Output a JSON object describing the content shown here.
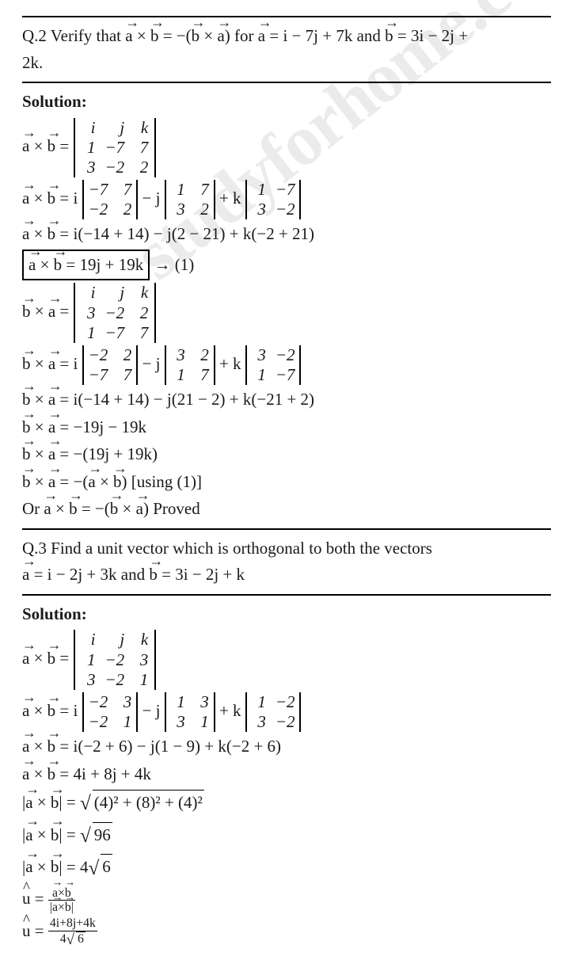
{
  "watermark": "studyforhome.com",
  "q2": {
    "prefix": "Q.2 Verify that ",
    "eq1_l": "a",
    "eq1_op": " × ",
    "eq1_r": "b",
    "eq1_rhs_pre": " = −(",
    "eq1_rhs_b": "b",
    "eq1_rhs_op": " × ",
    "eq1_rhs_a": "a",
    "eq1_rhs_post": ")",
    "for": " for ",
    "a_is": "a",
    "a_eq": " = i − 7j + 7k",
    "and": " and ",
    "b_is": "b",
    "b_eq": " = 3i − 2j + ",
    "line2": "2k."
  },
  "soln_label": "Solution:",
  "q2s": {
    "det3_ab": [
      "i",
      "j",
      "k",
      "1",
      "−7",
      "7",
      "3",
      "−2",
      "2"
    ],
    "ab_l1_pre": " =  i ",
    "d2a": [
      "−7",
      "7",
      "−2",
      "2"
    ],
    "ab_l1_mid": " − j ",
    "d2b": [
      "1",
      "7",
      "3",
      "2"
    ],
    "ab_l1_mid2": " + k ",
    "d2c": [
      "1",
      "−7",
      "3",
      "−2"
    ],
    "ab_expand": " = i(−14 + 14) − j(2 − 21) + k(−2 + 21)",
    "ab_boxed_l": "a",
    "ab_boxed_r": "b",
    "ab_boxed_rhs": " = 19j + 19k",
    "arrow_to_1": " → (1)",
    "det3_ba": [
      "i",
      "j",
      "k",
      "3",
      "−2",
      "2",
      "1",
      "−7",
      "7"
    ],
    "ba_l1_pre": " =  i ",
    "d2d": [
      "−2",
      "2",
      "−7",
      "7"
    ],
    "ba_l1_mid": " − j ",
    "d2e": [
      "3",
      "2",
      "1",
      "7"
    ],
    "ba_l1_mid2": " + k ",
    "d2f": [
      "3",
      "−2",
      "1",
      "−7"
    ],
    "ba_expand": " = i(−14 + 14) − j(21 − 2) + k(−21 + 2)",
    "ba_res1": " = −19j − 19k",
    "ba_res2": " = −(19j + 19k)",
    "ba_res3_pre": " = −(",
    "ba_res3_a": "a",
    "ba_res3_op": " × ",
    "ba_res3_b": "b",
    "ba_res3_post": ") [using (1)]",
    "or": "Or ",
    "proved_pre": " = −(",
    "proved_b": "b",
    "proved_op": " × ",
    "proved_a": "a",
    "proved_post": ") Proved"
  },
  "q3": {
    "line1": "Q.3 Find a unit vector which is orthogonal to both the vectors",
    "a_is": "a",
    "a_eq": " = i − 2j + 3k",
    "and": " and ",
    "b_is": "b",
    "b_eq": " = 3i − 2j + k"
  },
  "q3s": {
    "det3": [
      "i",
      "j",
      "k",
      "1",
      "−2",
      "3",
      "3",
      "−2",
      "1"
    ],
    "l1_pre": " =  i ",
    "d2a": [
      "−2",
      "3",
      "−2",
      "1"
    ],
    "l1_mid": " − j ",
    "d2b": [
      "1",
      "3",
      "3",
      "1"
    ],
    "l1_mid2": " + k ",
    "d2c": [
      "1",
      "−2",
      "3",
      "−2"
    ],
    "expand": " = i(−2 + 6) − j(1 − 9) + k(−2 + 6)",
    "res": " = 4i + 8j + 4k",
    "mag_expr": "(4)",
    "mag_full": "(4)² + (8)² + (4)²",
    "mag_96": "96",
    "mag_pre4": " = 4",
    "mag_6": "6",
    "u_num": "a×b",
    "u_den_l": "a",
    "u_den_op": "×",
    "u_den_r": "b",
    "u2_num": "4i+8j+4k",
    "u2_den_pre": "4",
    "u2_den_rad": "6"
  },
  "cross": " × ",
  "eq": " = "
}
